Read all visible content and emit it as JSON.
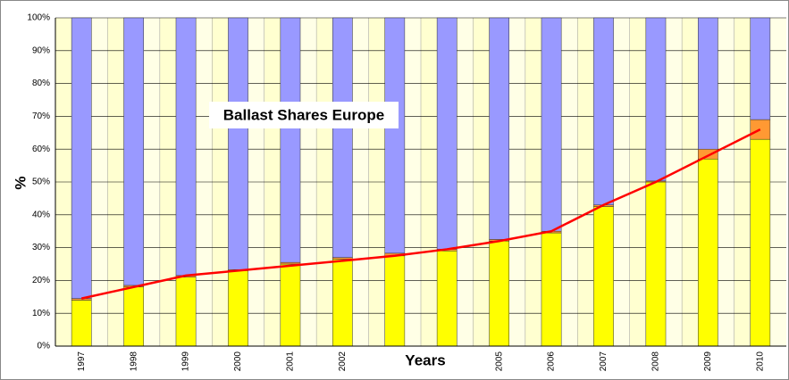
{
  "chart_data": {
    "type": "bar",
    "stacked": true,
    "title": "Ballast Shares Europe",
    "y_label": "%",
    "x_label": "Years",
    "categories": [
      "1997",
      "1998",
      "1999",
      "2000",
      "2001",
      "2002",
      null,
      null,
      "2005",
      "2006",
      "2007",
      "2008",
      "2009",
      "2010"
    ],
    "series": [
      {
        "color": "#ffff00",
        "values": [
          14,
          18,
          21,
          23,
          25,
          26.5,
          27.5,
          29,
          32,
          34.5,
          42.5,
          50,
          57,
          63
        ]
      },
      {
        "color": "#ff9933",
        "values": [
          0.5,
          0.5,
          0.5,
          0.3,
          0.5,
          0.5,
          0.8,
          0.5,
          0.5,
          0.5,
          0.5,
          0.3,
          3,
          6
        ]
      },
      {
        "color": "#9999ff",
        "values": [
          85.5,
          81.5,
          78.5,
          76.7,
          74.5,
          73,
          71.7,
          70.5,
          67.5,
          65,
          57,
          49.7,
          40,
          31
        ]
      },
      {
        "type": "line",
        "color": "#ff0000",
        "values": [
          14.5,
          18,
          21.5,
          23,
          24.5,
          26,
          27.5,
          29.5,
          32,
          35,
          43,
          50,
          58,
          66
        ]
      }
    ],
    "ylim": [
      0,
      100
    ],
    "yticks": [
      {
        "value": 0,
        "label": "0%"
      },
      {
        "value": 10,
        "label": "10%"
      },
      {
        "value": 20,
        "label": "20%"
      },
      {
        "value": 30,
        "label": "30%"
      },
      {
        "value": 40,
        "label": "40%"
      },
      {
        "value": 50,
        "label": "50%"
      },
      {
        "value": 60,
        "label": "60%"
      },
      {
        "value": 70,
        "label": "70%"
      },
      {
        "value": 80,
        "label": "80%"
      },
      {
        "value": 90,
        "label": "90%"
      },
      {
        "value": 100,
        "label": "100%"
      }
    ],
    "grid": true
  }
}
